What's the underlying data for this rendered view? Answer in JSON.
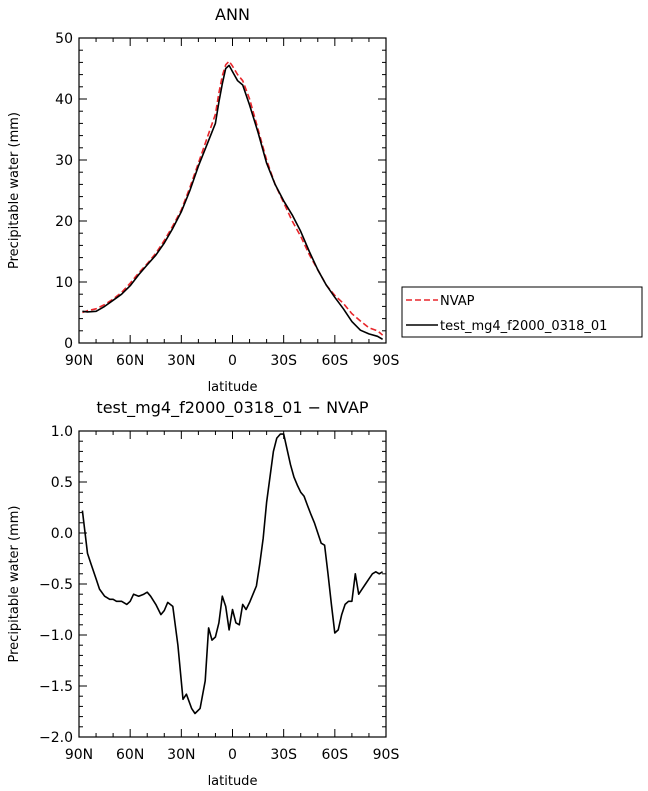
{
  "chart_data": [
    {
      "type": "line",
      "title": "ANN",
      "xlabel": "latitude",
      "ylabel": "Precipitable water (mm)",
      "x_ticks": [
        "90N",
        "60N",
        "30N",
        "0",
        "30S",
        "60S",
        "90S"
      ],
      "y_ticks": [
        "0",
        "10",
        "20",
        "30",
        "40",
        "50"
      ],
      "xlim": [
        90,
        -90
      ],
      "ylim": [
        0,
        50
      ],
      "legend_position": "right",
      "series": [
        {
          "name": "NVAP",
          "color": "#e8262b",
          "dash": "dashed",
          "x": [
            88,
            85,
            80,
            75,
            70,
            65,
            60,
            55,
            50,
            45,
            40,
            35,
            30,
            25,
            20,
            15,
            10,
            8,
            6,
            4,
            2,
            0,
            -3,
            -6,
            -10,
            -15,
            -20,
            -25,
            -30,
            -35,
            -40,
            -45,
            -50,
            -55,
            -60,
            -65,
            -70,
            -75,
            -80,
            -85,
            -88
          ],
          "y": [
            5.0,
            5.3,
            5.6,
            6.3,
            7.2,
            8.3,
            9.8,
            11.5,
            13.0,
            14.7,
            16.8,
            19.2,
            21.8,
            25.5,
            29.5,
            33.5,
            37.5,
            41.0,
            43.8,
            45.6,
            46.2,
            45.4,
            44.0,
            43.0,
            40.0,
            35.0,
            30.0,
            26.0,
            23.0,
            20.0,
            17.5,
            14.5,
            12.0,
            9.5,
            7.8,
            6.5,
            4.8,
            3.6,
            2.5,
            2.0,
            1.3
          ]
        },
        {
          "name": "test_mg4_f2000_0318_01",
          "color": "#000000",
          "dash": "solid",
          "x": [
            88,
            85,
            80,
            75,
            70,
            65,
            60,
            55,
            50,
            45,
            40,
            35,
            30,
            25,
            20,
            15,
            10,
            8,
            6,
            4,
            2,
            0,
            -3,
            -6,
            -10,
            -15,
            -20,
            -25,
            -30,
            -35,
            -40,
            -45,
            -50,
            -55,
            -60,
            -65,
            -70,
            -75,
            -80,
            -85,
            -88
          ],
          "y": [
            5.2,
            5.1,
            5.2,
            6.0,
            7.0,
            8.0,
            9.4,
            11.2,
            12.8,
            14.4,
            16.4,
            18.8,
            21.5,
            25.0,
            29.0,
            32.5,
            36.0,
            39.5,
            42.5,
            45.0,
            45.5,
            44.5,
            43.0,
            42.3,
            39.0,
            34.5,
            29.5,
            26.0,
            23.3,
            21.0,
            18.3,
            15.0,
            12.0,
            9.5,
            7.5,
            5.6,
            3.5,
            2.1,
            1.5,
            1.1,
            0.6
          ]
        }
      ]
    },
    {
      "type": "line",
      "title": "test_mg4_f2000_0318_01 − NVAP",
      "xlabel": "latitude",
      "ylabel": "Precipitable water (mm)",
      "x_ticks": [
        "90N",
        "60N",
        "30N",
        "0",
        "30S",
        "60S",
        "90S"
      ],
      "y_ticks": [
        "−2.0",
        "−1.5",
        "−1.0",
        "−0.5",
        "0.0",
        "0.5",
        "1.0"
      ],
      "xlim": [
        90,
        -90
      ],
      "ylim": [
        -2.0,
        1.0
      ],
      "series": [
        {
          "color": "#000000",
          "dash": "solid",
          "x": [
            88,
            85,
            83,
            80,
            78,
            75,
            72,
            70,
            68,
            65,
            62,
            60,
            58,
            55,
            52,
            50,
            48,
            45,
            42,
            40,
            38,
            35,
            32,
            29,
            27,
            24,
            22,
            19,
            16,
            14,
            12,
            10,
            8,
            6,
            4,
            2,
            0,
            -2,
            -4,
            -6,
            -8,
            -10,
            -12,
            -14,
            -16,
            -18,
            -20,
            -22,
            -24,
            -26,
            -28,
            -30,
            -32,
            -34,
            -36,
            -38,
            -40,
            -42,
            -44,
            -46,
            -48,
            -50,
            -52,
            -54,
            -56,
            -58,
            -60,
            -62,
            -64,
            -66,
            -68,
            -70,
            -72,
            -74,
            -76,
            -78,
            -80,
            -82,
            -84,
            -86,
            -88
          ],
          "y": [
            0.22,
            -0.2,
            -0.3,
            -0.45,
            -0.55,
            -0.62,
            -0.65,
            -0.65,
            -0.67,
            -0.67,
            -0.7,
            -0.67,
            -0.6,
            -0.62,
            -0.6,
            -0.58,
            -0.62,
            -0.7,
            -0.8,
            -0.76,
            -0.68,
            -0.72,
            -1.1,
            -1.63,
            -1.58,
            -1.72,
            -1.77,
            -1.72,
            -1.45,
            -0.93,
            -1.05,
            -1.02,
            -0.88,
            -0.62,
            -0.72,
            -0.95,
            -0.75,
            -0.88,
            -0.9,
            -0.7,
            -0.75,
            -0.68,
            -0.6,
            -0.52,
            -0.3,
            -0.05,
            0.3,
            0.55,
            0.8,
            0.93,
            0.97,
            0.97,
            0.82,
            0.67,
            0.55,
            0.47,
            0.4,
            0.36,
            0.27,
            0.18,
            0.1,
            0.0,
            -0.1,
            -0.12,
            -0.4,
            -0.7,
            -0.98,
            -0.95,
            -0.8,
            -0.7,
            -0.67,
            -0.67,
            -0.4,
            -0.6,
            -0.55,
            -0.5,
            -0.45,
            -0.4,
            -0.38,
            -0.4,
            -0.38
          ]
        }
      ]
    }
  ],
  "legend": {
    "items": [
      {
        "label": "NVAP",
        "color": "#e8262b",
        "dash": "dashed"
      },
      {
        "label": "test_mg4_f2000_0318_01",
        "color": "#000000",
        "dash": "solid"
      }
    ]
  }
}
